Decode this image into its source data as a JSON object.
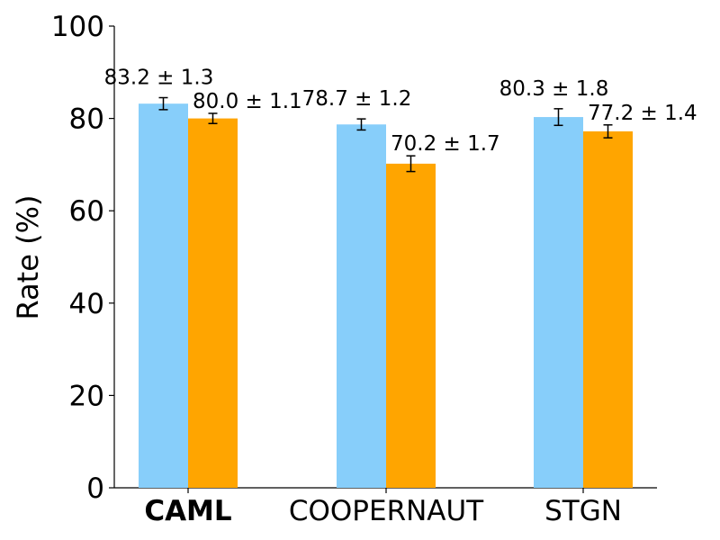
{
  "chart_data": {
    "type": "bar",
    "title": "",
    "xlabel": "",
    "ylabel": "Rate (%)",
    "ylim": [
      0,
      100
    ],
    "yticks": [
      0,
      20,
      40,
      60,
      80,
      100
    ],
    "grid": false,
    "categories": [
      "CAML",
      "COOPERNAUT",
      "STGN"
    ],
    "bold_categories": [
      "CAML"
    ],
    "series": [
      {
        "name": "series-1",
        "color": "#87CEFA",
        "values": [
          83.2,
          78.7,
          80.3
        ],
        "errors": [
          1.3,
          1.2,
          1.8
        ],
        "labels": [
          "83.2 ± 1.3",
          "78.7 ± 1.2",
          "80.3 ± 1.8"
        ]
      },
      {
        "name": "series-2",
        "color": "#FFA500",
        "values": [
          80.0,
          70.2,
          77.2
        ],
        "errors": [
          1.1,
          1.7,
          1.4
        ],
        "labels": [
          "80.0 ± 1.1",
          "70.2 ± 1.7",
          "77.2 ± 1.4"
        ]
      }
    ]
  }
}
